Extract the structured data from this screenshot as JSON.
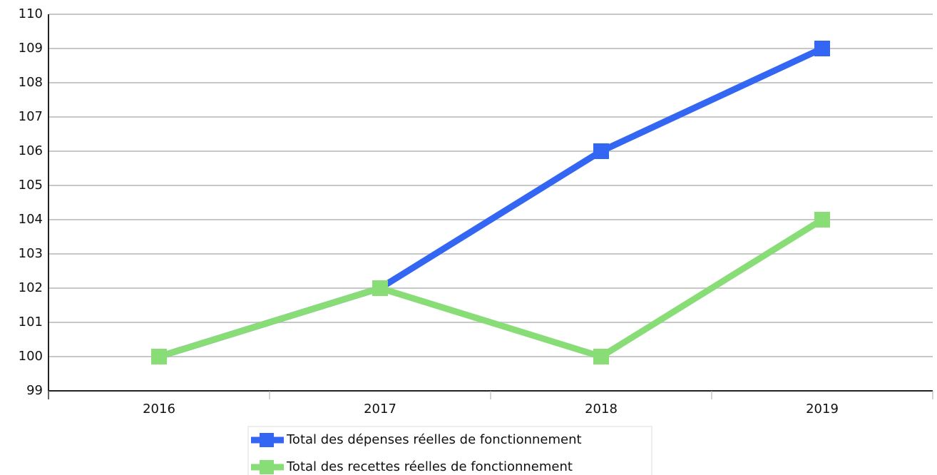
{
  "chart_data": {
    "type": "line",
    "categories": [
      "2016",
      "2017",
      "2018",
      "2019"
    ],
    "series": [
      {
        "name": "Total des dépenses réelles de fonctionnement",
        "color": "#3366f2",
        "values": [
          100,
          102,
          106,
          109
        ]
      },
      {
        "name": "Total des recettes réelles de fonctionnement",
        "color": "#88dd77",
        "values": [
          100,
          102,
          100,
          104
        ]
      }
    ],
    "ylim": [
      99,
      110
    ],
    "yticks": [
      99,
      100,
      101,
      102,
      103,
      104,
      105,
      106,
      107,
      108,
      109,
      110
    ],
    "grid": true,
    "legend": "bottom"
  }
}
